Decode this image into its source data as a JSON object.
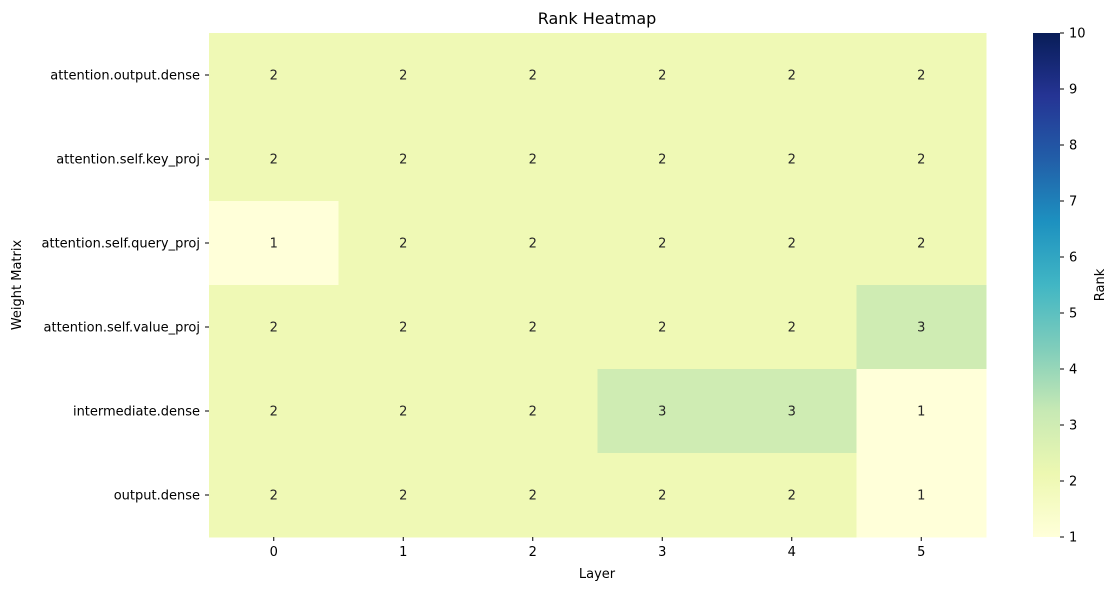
{
  "chart_data": {
    "type": "heatmap",
    "title": "Rank Heatmap",
    "xlabel": "Layer",
    "ylabel": "Weight Matrix",
    "x_categories": [
      "0",
      "1",
      "2",
      "3",
      "4",
      "5"
    ],
    "y_categories": [
      "attention.output.dense",
      "attention.self.key_proj",
      "attention.self.query_proj",
      "attention.self.value_proj",
      "intermediate.dense",
      "output.dense"
    ],
    "values": [
      [
        2,
        2,
        2,
        2,
        2,
        2
      ],
      [
        2,
        2,
        2,
        2,
        2,
        2
      ],
      [
        1,
        2,
        2,
        2,
        2,
        2
      ],
      [
        2,
        2,
        2,
        2,
        2,
        3
      ],
      [
        2,
        2,
        2,
        3,
        3,
        1
      ],
      [
        2,
        2,
        2,
        2,
        2,
        1
      ]
    ],
    "colorbar": {
      "label": "Rank",
      "min": 1,
      "max": 10,
      "ticks": [
        "1",
        "2",
        "3",
        "4",
        "5",
        "6",
        "7",
        "8",
        "9",
        "10"
      ],
      "colormap": "YlGnBu"
    },
    "grid": false
  }
}
